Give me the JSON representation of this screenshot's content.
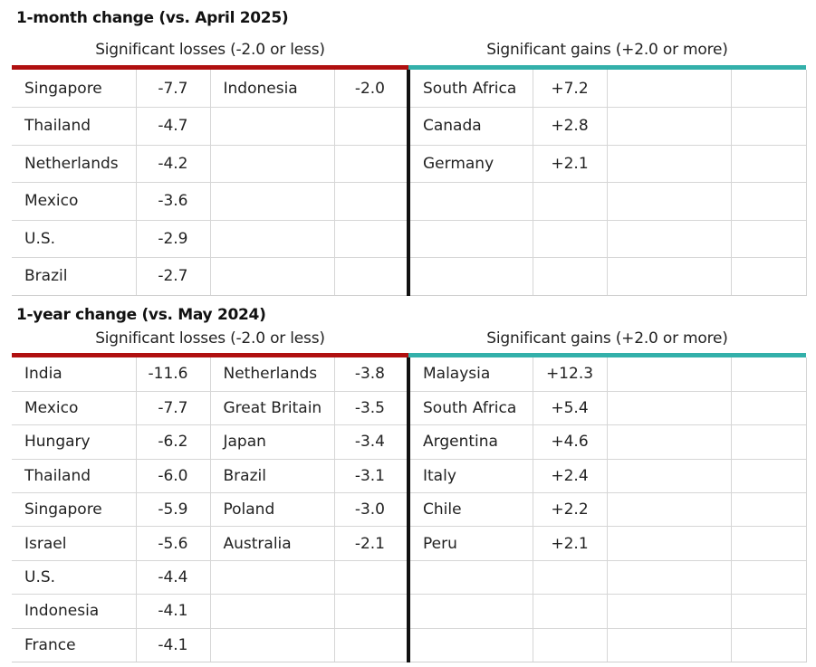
{
  "month": {
    "title": "1-month change (vs. April 2025)",
    "losses_label": "Significant losses (-2.0 or less)",
    "gains_label": "Significant gains (+2.0 or more)",
    "rows": [
      {
        "l1": "Singapore",
        "v1": "-7.7",
        "l2": "Indonesia",
        "v2": "-2.0",
        "g1": "South Africa",
        "gv1": "+7.2",
        "g2": "",
        "gv2": ""
      },
      {
        "l1": "Thailand",
        "v1": "-4.7",
        "l2": "",
        "v2": "",
        "g1": "Canada",
        "gv1": "+2.8",
        "g2": "",
        "gv2": ""
      },
      {
        "l1": "Netherlands",
        "v1": "-4.2",
        "l2": "",
        "v2": "",
        "g1": "Germany",
        "gv1": "+2.1",
        "g2": "",
        "gv2": ""
      },
      {
        "l1": "Mexico",
        "v1": "-3.6",
        "l2": "",
        "v2": "",
        "g1": "",
        "gv1": "",
        "g2": "",
        "gv2": ""
      },
      {
        "l1": "U.S.",
        "v1": "-2.9",
        "l2": "",
        "v2": "",
        "g1": "",
        "gv1": "",
        "g2": "",
        "gv2": ""
      },
      {
        "l1": "Brazil",
        "v1": "-2.7",
        "l2": "",
        "v2": "",
        "g1": "",
        "gv1": "",
        "g2": "",
        "gv2": ""
      }
    ]
  },
  "year": {
    "title": "1-year change (vs. May 2024)",
    "losses_label": "Significant losses (-2.0 or less)",
    "gains_label": "Significant gains (+2.0 or more)",
    "rows": [
      {
        "l1": "India",
        "v1": "-11.6",
        "l2": "Netherlands",
        "v2": "-3.8",
        "g1": "Malaysia",
        "gv1": "+12.3",
        "g2": "",
        "gv2": ""
      },
      {
        "l1": "Mexico",
        "v1": "-7.7",
        "l2": "Great Britain",
        "v2": "-3.5",
        "g1": "South Africa",
        "gv1": "+5.4",
        "g2": "",
        "gv2": ""
      },
      {
        "l1": "Hungary",
        "v1": "-6.2",
        "l2": "Japan",
        "v2": "-3.4",
        "g1": "Argentina",
        "gv1": "+4.6",
        "g2": "",
        "gv2": ""
      },
      {
        "l1": "Thailand",
        "v1": "-6.0",
        "l2": "Brazil",
        "v2": "-3.1",
        "g1": "Italy",
        "gv1": "+2.4",
        "g2": "",
        "gv2": ""
      },
      {
        "l1": "Singapore",
        "v1": "-5.9",
        "l2": "Poland",
        "v2": "-3.0",
        "g1": "Chile",
        "gv1": "+2.2",
        "g2": "",
        "gv2": ""
      },
      {
        "l1": "Israel",
        "v1": "-5.6",
        "l2": "Australia",
        "v2": "-2.1",
        "g1": "Peru",
        "gv1": "+2.1",
        "g2": "",
        "gv2": ""
      },
      {
        "l1": "U.S.",
        "v1": "-4.4",
        "l2": "",
        "v2": "",
        "g1": "",
        "gv1": "",
        "g2": "",
        "gv2": ""
      },
      {
        "l1": "Indonesia",
        "v1": "-4.1",
        "l2": "",
        "v2": "",
        "g1": "",
        "gv1": "",
        "g2": "",
        "gv2": ""
      },
      {
        "l1": "France",
        "v1": "-4.1",
        "l2": "",
        "v2": "",
        "g1": "",
        "gv1": "",
        "g2": "",
        "gv2": ""
      }
    ]
  },
  "colors": {
    "losses": "#b01010",
    "gains": "#33b0aa",
    "divider": "#111111"
  }
}
